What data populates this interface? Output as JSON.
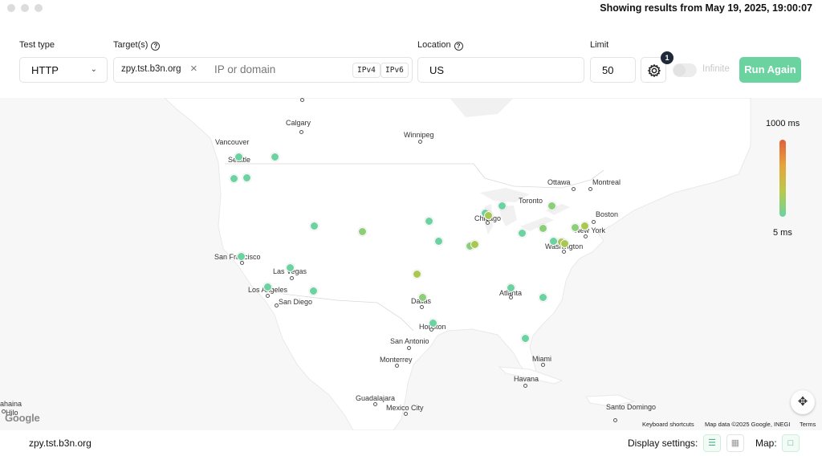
{
  "header": {
    "status": "Showing results from May 19, 2025, 19:00:07"
  },
  "form": {
    "test_type_label": "Test type",
    "test_type_value": "HTTP",
    "targets_label": "Target(s)",
    "target_chip": "zpy.tst.b3n.org",
    "target_placeholder": "IP or domain",
    "ipv4": "IPv4",
    "ipv6": "IPv6",
    "location_label": "Location",
    "location_value": "US",
    "limit_label": "Limit",
    "limit_value": "50",
    "settings_badge": "1",
    "infinite_label": "Infinite",
    "run_button": "Run Again"
  },
  "map": {
    "cities": [
      "Calgary",
      "Vancouver",
      "Seattle",
      "Winnipeg",
      "Ottawa",
      "Montreal",
      "Toronto",
      "Boston",
      "Chicago",
      "New York",
      "Washington",
      "San Francisco",
      "Las Vegas",
      "Los Angeles",
      "San Diego",
      "Atlanta",
      "Dallas",
      "Houston",
      "San Antonio",
      "Monterrey",
      "Miami",
      "Havana",
      "Guadalajara",
      "Mexico City",
      "Santo Domingo",
      "ahaina",
      "Hilo"
    ],
    "legend": {
      "max": "1000 ms",
      "min": "5 ms"
    },
    "colors": {
      "fast": "#6bd3a0",
      "medium": "#a8c850"
    },
    "google_logo": "Google",
    "attribution": {
      "shortcuts": "Keyboard shortcuts",
      "data": "Map data ©2025 Google, INEGI",
      "terms": "Terms"
    }
  },
  "footer": {
    "target": "zpy.tst.b3n.org",
    "display_settings": "Display settings:",
    "map_label": "Map:"
  }
}
